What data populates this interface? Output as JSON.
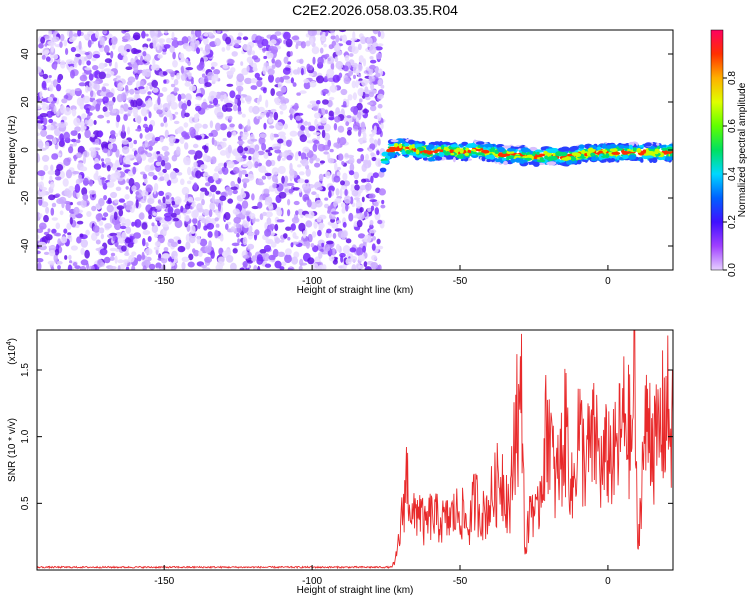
{
  "title": "C2E2.2026.058.03.35.R04",
  "chart_data": [
    {
      "type": "heatmap",
      "xlabel": "Height of straight line (km)",
      "ylabel": "Frequency (Hz)",
      "xlim": [
        -193,
        22
      ],
      "ylim": [
        -50,
        50
      ],
      "xticks": [
        -150,
        -100,
        -50,
        0
      ],
      "yticks": [
        -40,
        -20,
        0,
        20,
        40
      ],
      "colorbar": {
        "label": "Normalized spectral amplitude",
        "range": [
          0.0,
          1.0
        ],
        "ticks": [
          0.0,
          0.2,
          0.4,
          0.6,
          0.8
        ],
        "tick_labels": [
          "0.0",
          "0.2",
          "0.4",
          "0.6",
          "0.8"
        ]
      },
      "noise_region_x": [
        -193,
        -76
      ],
      "signal_band": [
        {
          "x": -76,
          "f": -5
        },
        {
          "x": -74,
          "f": 0
        },
        {
          "x": -70,
          "f": 1
        },
        {
          "x": -65,
          "f": 0
        },
        {
          "x": -60,
          "f": -1
        },
        {
          "x": -55,
          "f": 0
        },
        {
          "x": -50,
          "f": -1
        },
        {
          "x": -44,
          "f": 0
        },
        {
          "x": -40,
          "f": -1
        },
        {
          "x": -35,
          "f": -2
        },
        {
          "x": -30,
          "f": -2
        },
        {
          "x": -25,
          "f": -3
        },
        {
          "x": -20,
          "f": -2
        },
        {
          "x": -15,
          "f": -3
        },
        {
          "x": -10,
          "f": -2
        },
        {
          "x": -5,
          "f": -1
        },
        {
          "x": 0,
          "f": -1
        },
        {
          "x": 5,
          "f": -1
        },
        {
          "x": 10,
          "f": -1
        },
        {
          "x": 15,
          "f": -1
        },
        {
          "x": 22,
          "f": -1
        }
      ]
    },
    {
      "type": "line",
      "xlabel": "Height of straight line (km)",
      "ylabel": "SNR (10 * v/v)",
      "ylabel_scale": "(x10",
      "ylabel_exp": "4",
      "ylabel_close": ")",
      "xlim": [
        -193,
        22
      ],
      "ylim": [
        0,
        1.8
      ],
      "xticks": [
        -150,
        -100,
        -50,
        0
      ],
      "yticks": [
        0.5,
        1.0,
        1.5
      ],
      "ytick_labels": [
        "0.5",
        "1.0",
        "1.5"
      ],
      "series": [
        {
          "color": "#e8292a",
          "x": [
            -193,
            -150,
            -100,
            -76,
            -72,
            -70,
            -68,
            -66,
            -64,
            -62,
            -60,
            -55,
            -50,
            -47,
            -45,
            -42,
            -40,
            -36,
            -33,
            -31,
            -30,
            -29,
            -28,
            -26,
            -24,
            -22,
            -20,
            -18,
            -16,
            -14,
            -12,
            -10,
            -8,
            -6,
            -4,
            -2,
            0,
            2,
            4,
            6,
            8,
            9,
            10,
            12,
            14,
            16,
            18,
            20,
            22
          ],
          "y": [
            0.02,
            0.02,
            0.02,
            0.02,
            0.05,
            0.35,
            0.8,
            0.4,
            0.55,
            0.35,
            0.45,
            0.4,
            0.5,
            0.35,
            0.6,
            0.45,
            0.55,
            0.8,
            0.5,
            1.4,
            1.2,
            1.45,
            0.1,
            0.6,
            0.4,
            0.9,
            1.3,
            0.7,
            0.9,
            1.2,
            0.6,
            1.2,
            0.9,
            1.0,
            1.1,
            0.8,
            1.0,
            0.9,
            1.1,
            1.3,
            1.0,
            1.8,
            0.1,
            1.0,
            1.3,
            1.0,
            1.2,
            1.35,
            1.1
          ]
        }
      ]
    }
  ]
}
